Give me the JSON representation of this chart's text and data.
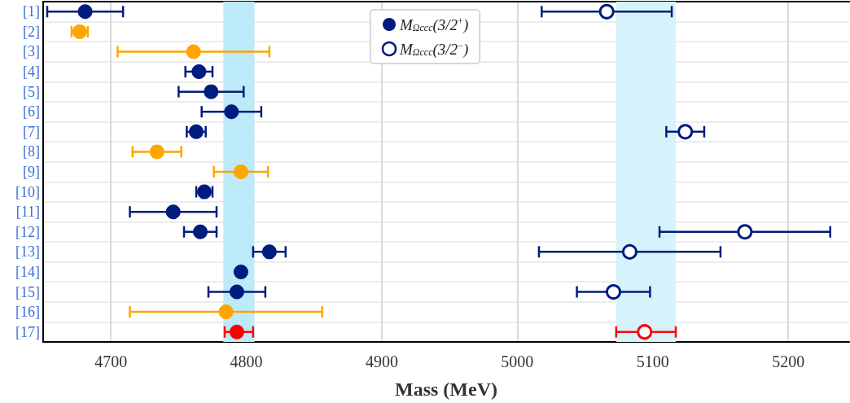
{
  "chart_data": {
    "type": "scatter",
    "orientation": "horizontal",
    "xlabel": "Mass (MeV)",
    "categories": [
      "[1]",
      "[2]",
      "[3]",
      "[4]",
      "[5]",
      "[6]",
      "[7]",
      "[8]",
      "[9]",
      "[10]",
      "[11]",
      "[12]",
      "[13]",
      "[14]",
      "[15]",
      "[16]",
      "[17]"
    ],
    "series": [
      {
        "name": "M$_{Ωccc}$(3/2$^{+}$)",
        "marker": "circle",
        "colors": [
          "#001c7f",
          "#ffa500",
          "#ffa500",
          "#001c7f",
          "#001c7f",
          "#001c7f",
          "#001c7f",
          "#ffa500",
          "#ffa500",
          "#001c7f",
          "#001c7f",
          "#001c7f",
          "#001c7f",
          "#001c7f",
          "#001c7f",
          "#ffa500",
          "#ff0000"
        ],
        "values": [
          4681,
          4677,
          4761,
          4765,
          4774,
          4789,
          4763,
          4734,
          4796,
          4769,
          4746,
          4766,
          4817,
          4796,
          4793,
          4785,
          4793
        ],
        "errors": [
          [
            4653,
            4709
          ],
          [
            4671,
            4683
          ],
          [
            4705,
            4817
          ],
          [
            4755,
            4775
          ],
          [
            4750,
            4798
          ],
          [
            4767,
            4811
          ],
          [
            4756,
            4770
          ],
          [
            4716,
            4752
          ],
          [
            4776,
            4816
          ],
          [
            4763,
            4775
          ],
          [
            4714,
            4778
          ],
          [
            4754,
            4778
          ],
          [
            4805,
            4829
          ],
          null,
          [
            4772,
            4814
          ],
          [
            4714,
            4856
          ],
          [
            4784,
            4805
          ]
        ]
      },
      {
        "name": "M$_{Ωccc}$(3/2$^{−}$)",
        "marker": "circle",
        "colors": [
          "#001c7f",
          null,
          null,
          null,
          null,
          null,
          "#001c7f",
          null,
          null,
          null,
          null,
          "#001c7f",
          "#001c7f",
          null,
          "#001c7f",
          null,
          "#ff0000"
        ],
        "values": [
          5066,
          null,
          null,
          null,
          null,
          null,
          5124,
          null,
          null,
          null,
          null,
          5168,
          5083,
          null,
          5071,
          null,
          5094
        ],
        "errors": [
          [
            5018,
            5114
          ],
          null,
          null,
          null,
          null,
          null,
          [
            5110,
            5138
          ],
          null,
          null,
          null,
          null,
          [
            5105,
            5231
          ],
          [
            5016,
            5150
          ],
          null,
          [
            5044,
            5098
          ],
          null,
          [
            5073,
            5117
          ]
        ]
      }
    ],
    "xlim": [
      4650,
      5245
    ],
    "xticks": [
      4700,
      4800,
      4900,
      5000,
      5100,
      5200
    ],
    "bands": [
      {
        "axis": "x",
        "from": 4783,
        "to": 4806,
        "color": "#bdeaf8"
      },
      {
        "axis": "x",
        "from": 5073,
        "to": 5117,
        "color": "#d6f3fc"
      }
    ],
    "grid": true,
    "legend": "top"
  }
}
